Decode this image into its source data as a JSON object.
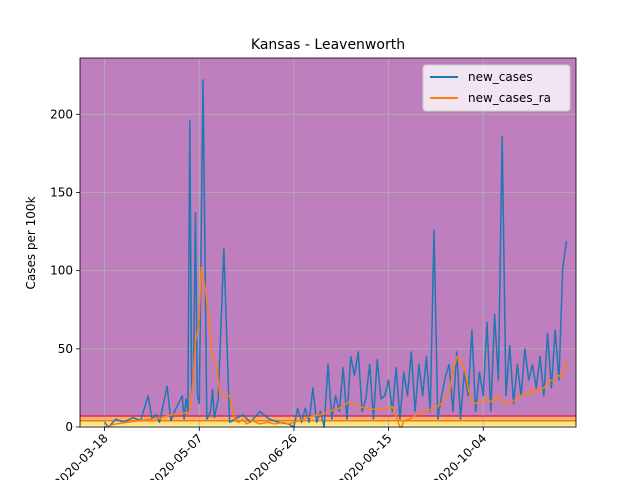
{
  "chart_data": {
    "type": "line",
    "title": "Kansas - Leavenworth",
    "xlabel": "",
    "ylabel": "Cases per 100k",
    "x_tick_labels": [
      "2020-03-18",
      "2020-05-07",
      "2020-06-26",
      "2020-08-15",
      "2020-10-04"
    ],
    "y_ticks": [
      0,
      50,
      100,
      150,
      200
    ],
    "x_range": [
      "2020-03-05",
      "2020-11-22"
    ],
    "ylim": [
      0,
      236
    ],
    "grid": true,
    "legend": {
      "placement": "top-right",
      "entries": [
        "new_cases",
        "new_cases_ra"
      ]
    },
    "background_bands": [
      {
        "from": 0,
        "to": 1,
        "color": "#fffbbd"
      },
      {
        "from": 1,
        "to": 4,
        "color": "#fde37a"
      },
      {
        "from": 4,
        "to": 7,
        "color": "#f9b46b"
      },
      {
        "from": 7,
        "to": 236,
        "color": "#bf7fbf"
      }
    ],
    "threshold_lines": [
      {
        "y": 7,
        "color": "#e0245e"
      },
      {
        "y": 4,
        "color": "#f27b22"
      }
    ],
    "series": [
      {
        "name": "new_cases",
        "color": "#1f77b4",
        "x": [
          "2020-03-18",
          "2020-03-20",
          "2020-03-24",
          "2020-03-28",
          "2020-04-02",
          "2020-04-06",
          "2020-04-10",
          "2020-04-12",
          "2020-04-14",
          "2020-04-16",
          "2020-04-20",
          "2020-04-22",
          "2020-04-24",
          "2020-04-26",
          "2020-04-28",
          "2020-04-29",
          "2020-04-30",
          "2020-05-01",
          "2020-05-02",
          "2020-05-03",
          "2020-05-04",
          "2020-05-05",
          "2020-05-06",
          "2020-05-07",
          "2020-05-09",
          "2020-05-11",
          "2020-05-13",
          "2020-05-14",
          "2020-05-15",
          "2020-05-17",
          "2020-05-20",
          "2020-05-23",
          "2020-05-26",
          "2020-05-30",
          "2020-06-03",
          "2020-06-08",
          "2020-06-13",
          "2020-06-18",
          "2020-06-23",
          "2020-06-26",
          "2020-06-28",
          "2020-06-30",
          "2020-07-02",
          "2020-07-04",
          "2020-07-06",
          "2020-07-08",
          "2020-07-10",
          "2020-07-12",
          "2020-07-14",
          "2020-07-16",
          "2020-07-18",
          "2020-07-20",
          "2020-07-22",
          "2020-07-24",
          "2020-07-26",
          "2020-07-28",
          "2020-07-30",
          "2020-08-01",
          "2020-08-03",
          "2020-08-05",
          "2020-08-07",
          "2020-08-09",
          "2020-08-11",
          "2020-08-13",
          "2020-08-15",
          "2020-08-17",
          "2020-08-19",
          "2020-08-21",
          "2020-08-23",
          "2020-08-25",
          "2020-08-27",
          "2020-08-29",
          "2020-08-31",
          "2020-09-02",
          "2020-09-04",
          "2020-09-06",
          "2020-09-08",
          "2020-09-10",
          "2020-09-12",
          "2020-09-14",
          "2020-09-16",
          "2020-09-18",
          "2020-09-20",
          "2020-09-22",
          "2020-09-24",
          "2020-09-26",
          "2020-09-28",
          "2020-09-30",
          "2020-10-02",
          "2020-10-04",
          "2020-10-06",
          "2020-10-08",
          "2020-10-10",
          "2020-10-12",
          "2020-10-14",
          "2020-10-16",
          "2020-10-18",
          "2020-10-20",
          "2020-10-22",
          "2020-10-24",
          "2020-10-26",
          "2020-10-28",
          "2020-10-30",
          "2020-11-01",
          "2020-11-03",
          "2020-11-05",
          "2020-11-07",
          "2020-11-09",
          "2020-11-11",
          "2020-11-13",
          "2020-11-15",
          "2020-11-17"
        ],
        "values": [
          3,
          0,
          5,
          3,
          6,
          4,
          20,
          5,
          8,
          3,
          26,
          4,
          10,
          15,
          20,
          5,
          18,
          10,
          196,
          20,
          35,
          137,
          20,
          15,
          222,
          5,
          10,
          24,
          6,
          18,
          114,
          3,
          5,
          8,
          3,
          10,
          5,
          3,
          2,
          0,
          12,
          3,
          12,
          3,
          25,
          3,
          10,
          0,
          40,
          5,
          20,
          10,
          38,
          5,
          45,
          33,
          48,
          10,
          18,
          40,
          5,
          43,
          18,
          20,
          30,
          10,
          38,
          5,
          35,
          20,
          48,
          10,
          40,
          20,
          45,
          10,
          126,
          5,
          20,
          32,
          40,
          10,
          48,
          5,
          35,
          20,
          62,
          10,
          35,
          20,
          67,
          10,
          72,
          30,
          186,
          20,
          52,
          15,
          40,
          20,
          50,
          30,
          40,
          25,
          45,
          20,
          60,
          25,
          62,
          30,
          102,
          119
        ]
      },
      {
        "name": "new_cases_ra",
        "color": "#ff7f0e",
        "x": [
          "2020-03-18",
          "2020-03-24",
          "2020-03-30",
          "2020-04-05",
          "2020-04-11",
          "2020-04-17",
          "2020-04-23",
          "2020-04-26",
          "2020-04-29",
          "2020-05-01",
          "2020-05-02",
          "2020-05-03",
          "2020-05-04",
          "2020-05-05",
          "2020-05-06",
          "2020-05-07",
          "2020-05-08",
          "2020-05-09",
          "2020-05-10",
          "2020-05-12",
          "2020-05-14",
          "2020-05-16",
          "2020-05-18",
          "2020-05-19",
          "2020-05-21",
          "2020-05-23",
          "2020-05-26",
          "2020-05-28",
          "2020-05-30",
          "2020-06-01",
          "2020-06-04",
          "2020-06-08",
          "2020-06-12",
          "2020-06-16",
          "2020-06-20",
          "2020-06-23",
          "2020-06-26",
          "2020-07-01",
          "2020-07-06",
          "2020-07-10",
          "2020-07-15",
          "2020-07-20",
          "2020-07-25",
          "2020-07-30",
          "2020-08-04",
          "2020-08-09",
          "2020-08-12",
          "2020-08-15",
          "2020-08-17",
          "2020-08-18",
          "2020-08-21",
          "2020-08-22",
          "2020-08-23",
          "2020-08-26",
          "2020-08-30",
          "2020-09-03",
          "2020-09-08",
          "2020-09-12",
          "2020-09-14",
          "2020-09-16",
          "2020-09-18",
          "2020-09-20",
          "2020-09-22",
          "2020-09-24",
          "2020-09-26",
          "2020-09-28",
          "2020-09-30",
          "2020-10-02",
          "2020-10-04",
          "2020-10-06",
          "2020-10-08",
          "2020-10-10",
          "2020-10-12",
          "2020-10-14",
          "2020-10-16",
          "2020-10-18",
          "2020-10-20",
          "2020-10-22",
          "2020-10-24",
          "2020-10-26",
          "2020-10-28",
          "2020-10-30",
          "2020-11-01",
          "2020-11-03",
          "2020-11-05",
          "2020-11-07",
          "2020-11-09",
          "2020-11-11",
          "2020-11-13",
          "2020-11-15",
          "2020-11-17"
        ],
        "values": [
          0,
          2,
          3,
          4,
          5,
          6,
          8,
          8,
          9,
          9,
          10,
          20,
          35,
          55,
          60,
          70,
          102,
          95,
          90,
          70,
          45,
          40,
          20,
          20,
          20,
          20,
          4,
          3,
          5,
          2,
          4,
          2,
          3,
          2,
          3,
          2,
          3,
          5,
          7,
          8,
          10,
          12,
          16,
          13,
          12,
          11,
          11,
          12,
          13,
          10,
          0,
          0,
          4,
          5,
          8,
          10,
          12,
          15,
          20,
          22,
          35,
          45,
          42,
          38,
          25,
          16,
          15,
          16,
          17,
          18,
          16,
          18,
          20,
          16,
          16,
          15,
          17,
          18,
          20,
          22,
          20,
          25,
          22,
          24,
          25,
          28,
          30,
          30,
          33,
          32,
          42
        ]
      }
    ]
  }
}
